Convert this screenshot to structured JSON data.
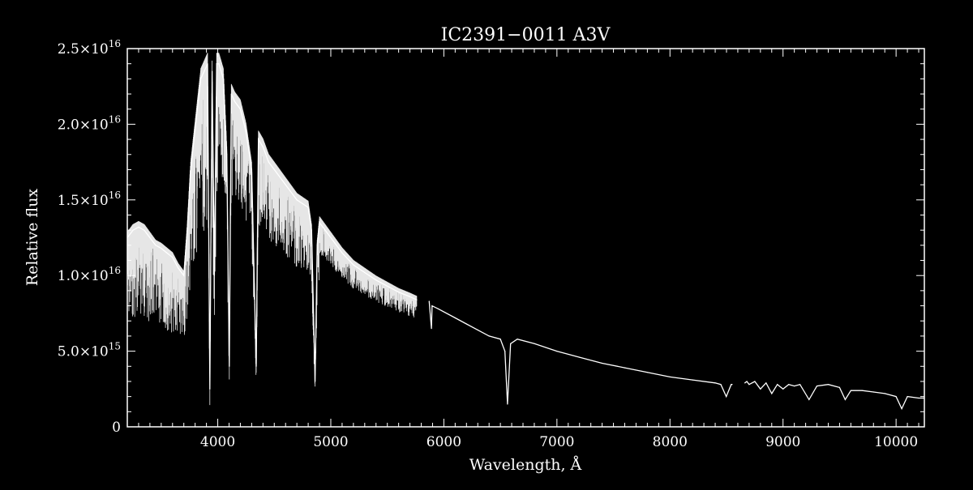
{
  "chart_data": {
    "type": "line",
    "title": "IC2391−0011   A3V",
    "xlabel": "Wavelength, Å",
    "ylabel": "Relative flux",
    "xlim": [
      3200,
      10250
    ],
    "ylim": [
      0,
      2.5e+16
    ],
    "x_ticks": [
      4000,
      5000,
      6000,
      7000,
      8000,
      9000,
      10000
    ],
    "x_tick_labels": [
      "4000",
      "5000",
      "6000",
      "7000",
      "8000",
      "9000",
      "10000"
    ],
    "y_ticks": [
      0,
      5000000000000000.0,
      1e+16,
      1.5e+16,
      2e+16,
      2.5e+16
    ],
    "y_tick_labels": [
      {
        "mantissa": "0",
        "exponent": ""
      },
      {
        "mantissa": "5.0×10",
        "exponent": "15"
      },
      {
        "mantissa": "1.0×10",
        "exponent": "16"
      },
      {
        "mantissa": "1.5×10",
        "exponent": "16"
      },
      {
        "mantissa": "2.0×10",
        "exponent": "16"
      },
      {
        "mantissa": "2.5×10",
        "exponent": "16"
      }
    ],
    "grid": false,
    "colors": {
      "background": "#000000",
      "foreground": "#ffffff"
    },
    "series": [
      {
        "x": [
          3200,
          3250,
          3300,
          3350,
          3400,
          3450,
          3500,
          3550,
          3600,
          3650,
          3700,
          3730,
          3760,
          3790,
          3820,
          3850,
          3880,
          3910,
          3930,
          3950,
          3970,
          3990,
          4010,
          4030,
          4050,
          4080,
          4102,
          4120,
          4150,
          4200,
          4250,
          4300,
          4340,
          4360,
          4400,
          4450,
          4500,
          4600,
          4700,
          4800,
          4830,
          4861,
          4880,
          4900,
          4950,
          5000,
          5100,
          5200,
          5300,
          5400,
          5500,
          5600,
          5700,
          5760,
          5870,
          5890,
          5896,
          5950,
          6100,
          6200,
          6300,
          6400,
          6500,
          6540,
          6563,
          6590,
          6650,
          6800,
          7000,
          7200,
          7400,
          7600,
          7800,
          8000,
          8200,
          8400,
          8450,
          8498,
          8542,
          8550,
          8662,
          8680,
          8700,
          8750,
          8800,
          8850,
          8900,
          8950,
          9000,
          9050,
          9100,
          9150,
          9230,
          9300,
          9400,
          9500,
          9550,
          9600,
          9700,
          9800,
          9900,
          10000,
          10050,
          10100,
          10200,
          10250
        ],
        "values": [
          1.25e+16,
          1.3e+16,
          1.32e+16,
          1.3e+16,
          1.25e+16,
          1.2e+16,
          1.18e+16,
          1.15e+16,
          1.12e+16,
          1.05e+16,
          1e+16,
          1.3e+16,
          1.7e+16,
          1.9e+16,
          2.1e+16,
          2.3e+16,
          2.35e+16,
          2.4e+16,
          2500000000000000.0,
          2.35e+16,
          1e+16,
          2.4e+16,
          2.4e+16,
          2.35e+16,
          2.3e+16,
          1.8e+16,
          4000000000000000.0,
          2.2e+16,
          2.15e+16,
          2.1e+16,
          1.95e+16,
          1.7e+16,
          4000000000000000.0,
          1.9e+16,
          1.85e+16,
          1.75e+16,
          1.7e+16,
          1.6e+16,
          1.5e+16,
          1.45e+16,
          1.3e+16,
          3000000000000000.0,
          1.2e+16,
          1.35e+16,
          1.3e+16,
          1.25e+16,
          1.15e+16,
          1.07e+16,
          1.02e+16,
          9700000000000000.0,
          9300000000000000.0,
          8900000000000000.0,
          8600000000000000.0,
          8400000000000000.0,
          8300000000000000.0,
          6500000000000000.0,
          8000000000000000.0,
          7800000000000000.0,
          7200000000000000.0,
          6800000000000000.0,
          6400000000000000.0,
          6000000000000000.0,
          5800000000000000.0,
          5000000000000000.0,
          1500000000000000.0,
          5500000000000000.0,
          5800000000000000.0,
          5500000000000000.0,
          5000000000000000.0,
          4600000000000000.0,
          4200000000000000.0,
          3900000000000000.0,
          3600000000000000.0,
          3300000000000000.0,
          3100000000000000.0,
          2900000000000000.0,
          2800000000000000.0,
          2000000000000000.0,
          2800000000000000.0,
          2800000000000000.0,
          2900000000000000.0,
          3000000000000000.0,
          2800000000000000.0,
          3000000000000000.0,
          2500000000000000.0,
          2900000000000000.0,
          2200000000000000.0,
          2800000000000000.0,
          2500000000000000.0,
          2800000000000000.0,
          2700000000000000.0,
          2800000000000000.0,
          1800000000000000.0,
          2700000000000000.0,
          2800000000000000.0,
          2600000000000000.0,
          1800000000000000.0,
          2400000000000000.0,
          2400000000000000.0,
          2300000000000000.0,
          2200000000000000.0,
          2000000000000000.0,
          1200000000000000.0,
          2000000000000000.0,
          1900000000000000.0,
          1900000000000000.0
        ]
      }
    ]
  }
}
